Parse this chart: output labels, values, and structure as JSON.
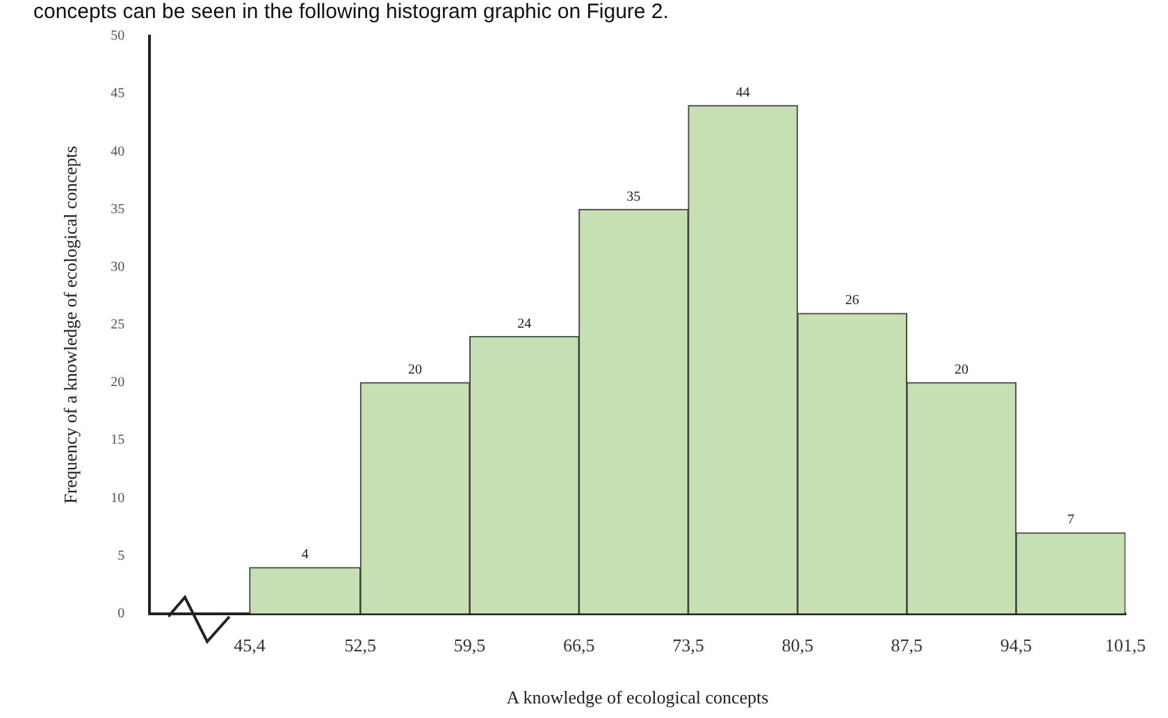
{
  "chart_data": {
    "type": "histogram",
    "xlabel": "A knowledge of ecological concepts",
    "ylabel": "Frequency of a knowledge of ecological concepts",
    "annotations": [
      "concepts can be seen in the following histogram graphic on Figure 2."
    ],
    "bins": [
      45.4,
      52.5,
      59.5,
      66.5,
      73.5,
      80.5,
      87.5,
      94.5,
      101.5
    ],
    "values": [
      4,
      20,
      24,
      35,
      44,
      26,
      20,
      7
    ],
    "color": "#c6e0b4",
    "xlim": [
      39,
      101.5
    ],
    "xticks": [
      {
        "value": 45.4,
        "label": "45,4"
      },
      {
        "value": 52.5,
        "label": "52,5"
      },
      {
        "value": 59.5,
        "label": "59,5"
      },
      {
        "value": 66.5,
        "label": "66,5"
      },
      {
        "value": 73.5,
        "label": "73,5"
      },
      {
        "value": 80.5,
        "label": "80,5"
      },
      {
        "value": 87.5,
        "label": "87,5"
      },
      {
        "value": 94.5,
        "label": "94,5"
      },
      {
        "value": 101.5,
        "label": "101,5"
      }
    ],
    "ylim": [
      0,
      50
    ],
    "yticks": [
      0,
      5,
      10,
      15,
      20,
      25,
      30,
      35,
      40,
      45,
      50
    ],
    "data_labels": true,
    "grid": false,
    "legend": false
  }
}
